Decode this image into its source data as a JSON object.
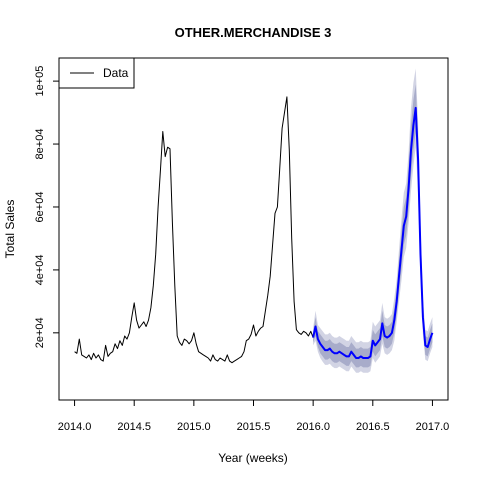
{
  "chart_data": {
    "type": "line",
    "title": "OTHER.MERCHANDISE 3",
    "xlabel": "Year (weeks)",
    "ylabel": "Total Sales",
    "xlim": [
      2014.0,
      2017.0
    ],
    "ylim": [
      0,
      100000
    ],
    "x_ticks": [
      2014.0,
      2014.5,
      2015.0,
      2015.5,
      2016.0,
      2016.5,
      2017.0
    ],
    "x_tick_labels": [
      "2014.0",
      "2014.5",
      "2015.0",
      "2015.5",
      "2016.0",
      "2016.5",
      "2017.0"
    ],
    "y_ticks": [
      20000,
      40000,
      60000,
      80000,
      100000
    ],
    "y_tick_labels": [
      "2e+04",
      "4e+04",
      "6e+04",
      "8e+04",
      "1e+05"
    ],
    "legend": {
      "position": "top-left",
      "entries": [
        {
          "label": "Data",
          "color": "#000000"
        }
      ]
    },
    "series": [
      {
        "name": "Data",
        "color": "#000000",
        "x": [
          2014.0,
          2014.02,
          2014.04,
          2014.06,
          2014.08,
          2014.1,
          2014.12,
          2014.14,
          2014.16,
          2014.18,
          2014.2,
          2014.22,
          2014.24,
          2014.26,
          2014.28,
          2014.3,
          2014.32,
          2014.34,
          2014.36,
          2014.38,
          2014.4,
          2014.42,
          2014.44,
          2014.46,
          2014.48,
          2014.5,
          2014.52,
          2014.54,
          2014.56,
          2014.58,
          2014.6,
          2014.62,
          2014.64,
          2014.66,
          2014.68,
          2014.7,
          2014.72,
          2014.74,
          2014.76,
          2014.78,
          2014.8,
          2014.82,
          2014.84,
          2014.86,
          2014.88,
          2014.9,
          2014.92,
          2014.94,
          2014.96,
          2014.98,
          2015.0,
          2015.02,
          2015.04,
          2015.06,
          2015.08,
          2015.1,
          2015.12,
          2015.14,
          2015.16,
          2015.18,
          2015.2,
          2015.22,
          2015.24,
          2015.26,
          2015.28,
          2015.3,
          2015.32,
          2015.34,
          2015.36,
          2015.38,
          2015.4,
          2015.42,
          2015.44,
          2015.46,
          2015.48,
          2015.5,
          2015.52,
          2015.54,
          2015.56,
          2015.58,
          2015.6,
          2015.62,
          2015.64,
          2015.66,
          2015.68,
          2015.7,
          2015.72,
          2015.74,
          2015.76,
          2015.78,
          2015.8,
          2015.82,
          2015.84,
          2015.86,
          2015.88,
          2015.9,
          2015.92,
          2015.94,
          2015.96,
          2015.98,
          2016.0
        ],
        "y": [
          14000,
          13500,
          18000,
          13000,
          12500,
          12000,
          13000,
          11500,
          13500,
          12000,
          13000,
          11500,
          11000,
          16000,
          12500,
          13500,
          14000,
          16500,
          15000,
          17500,
          16000,
          19000,
          18000,
          20000,
          25000,
          29500,
          24000,
          21500,
          22500,
          23500,
          22000,
          24000,
          28000,
          35000,
          45000,
          60000,
          72000,
          84000,
          76000,
          79000,
          78500,
          55000,
          35000,
          19000,
          17000,
          16000,
          18000,
          17500,
          16500,
          17500,
          20000,
          16500,
          14000,
          13500,
          13000,
          12500,
          12000,
          11000,
          13000,
          11500,
          11000,
          12000,
          11500,
          11000,
          13000,
          11000,
          10500,
          11000,
          11500,
          12000,
          12500,
          14000,
          17500,
          18000,
          19500,
          22500,
          19000,
          20500,
          21500,
          22000,
          27000,
          32000,
          38000,
          48000,
          58000,
          60000,
          72000,
          85000,
          90000,
          95000,
          78000,
          50000,
          30000,
          21000,
          20000,
          19500,
          20500,
          20000,
          19000,
          20500,
          18500
        ]
      },
      {
        "name": "",
        "color": "#0000ff",
        "x": [
          2016.0,
          2016.02,
          2016.04,
          2016.06,
          2016.08,
          2016.1,
          2016.12,
          2016.14,
          2016.16,
          2016.18,
          2016.2,
          2016.22,
          2016.24,
          2016.26,
          2016.28,
          2016.3,
          2016.32,
          2016.34,
          2016.36,
          2016.38,
          2016.4,
          2016.42,
          2016.44,
          2016.46,
          2016.48,
          2016.5,
          2016.52,
          2016.54,
          2016.56,
          2016.58,
          2016.6,
          2016.62,
          2016.64,
          2016.66,
          2016.68,
          2016.7,
          2016.72,
          2016.74,
          2016.76,
          2016.78,
          2016.8,
          2016.82,
          2016.84,
          2016.86,
          2016.88,
          2016.9,
          2016.92,
          2016.94,
          2016.96,
          2016.98,
          2017.0
        ],
        "y": [
          18500,
          22000,
          18000,
          16500,
          15500,
          14500,
          14500,
          15000,
          14000,
          13500,
          13500,
          14000,
          13500,
          13000,
          12500,
          12500,
          14000,
          13000,
          12000,
          12000,
          12500,
          12000,
          12000,
          12000,
          12500,
          17500,
          16000,
          17000,
          18000,
          23000,
          19000,
          18500,
          19000,
          20000,
          24000,
          30000,
          38000,
          46000,
          54000,
          57000,
          66000,
          78000,
          86000,
          91500,
          75000,
          45000,
          25000,
          16000,
          15500,
          18000,
          20000
        ],
        "lo80": [
          17000,
          19000,
          15500,
          13500,
          12500,
          11500,
          11500,
          12000,
          11000,
          10500,
          10500,
          11000,
          10500,
          10000,
          9500,
          9500,
          11000,
          10000,
          9000,
          9000,
          9500,
          9000,
          9000,
          9000,
          9500,
          14000,
          12500,
          13500,
          14500,
          19000,
          15500,
          15000,
          15500,
          16500,
          20000,
          26000,
          33000,
          40000,
          48000,
          51000,
          59000,
          70000,
          78000,
          84000,
          68000,
          40000,
          21500,
          13000,
          12500,
          15000,
          17000
        ],
        "hi80": [
          20000,
          25000,
          20500,
          19500,
          18500,
          17500,
          17500,
          18000,
          17000,
          16500,
          16500,
          17000,
          16500,
          16000,
          15500,
          15500,
          17000,
          16000,
          15000,
          15000,
          15500,
          15000,
          15000,
          15000,
          15500,
          21000,
          19500,
          20500,
          21500,
          27000,
          22500,
          22000,
          22500,
          23500,
          28000,
          34000,
          43000,
          52000,
          60000,
          63000,
          73000,
          86000,
          94000,
          99000,
          82000,
          50000,
          28500,
          19000,
          18500,
          21000,
          23000
        ],
        "lo95": [
          16000,
          17500,
          14000,
          12000,
          10800,
          9800,
          9800,
          10200,
          9300,
          8800,
          8800,
          9300,
          8800,
          8300,
          7800,
          7800,
          9300,
          8300,
          7300,
          7300,
          7800,
          7300,
          7300,
          7300,
          7800,
          12000,
          10500,
          11500,
          12500,
          16500,
          13500,
          13000,
          13500,
          14500,
          17500,
          23500,
          30000,
          36500,
          44000,
          47000,
          55000,
          65000,
          73000,
          79000,
          64000,
          37000,
          19500,
          11500,
          11000,
          13500,
          15500
        ],
        "hi95": [
          21500,
          27000,
          22500,
          21500,
          20500,
          19500,
          19500,
          20000,
          19000,
          18500,
          18500,
          19000,
          18500,
          18000,
          17500,
          17500,
          19000,
          18000,
          17000,
          17000,
          17500,
          17000,
          17000,
          17000,
          17500,
          23500,
          22000,
          23000,
          24000,
          29500,
          25000,
          24500,
          25000,
          26000,
          31000,
          37000,
          46500,
          56000,
          64500,
          67500,
          77500,
          91500,
          99500,
          104000,
          87000,
          54000,
          31000,
          21000,
          20500,
          23000,
          25000
        ],
        "band_colors": {
          "pi80": "#a8acca",
          "pi95": "#d2d4e4"
        }
      }
    ]
  }
}
